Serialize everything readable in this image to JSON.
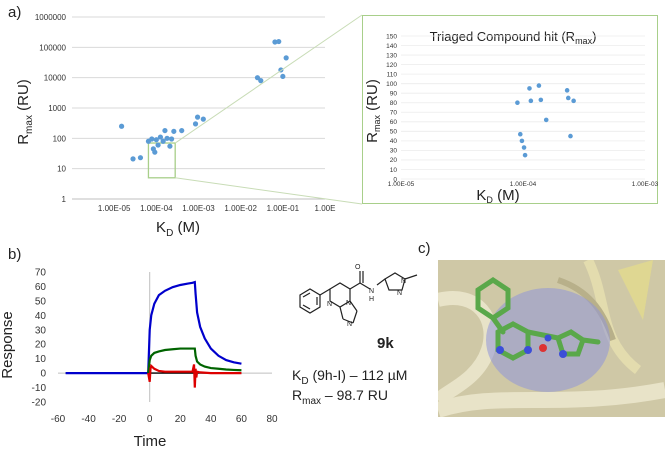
{
  "panel_labels": {
    "a": "a)",
    "b": "b)",
    "c": "c)"
  },
  "compound": {
    "name": "9k",
    "kd_label": "K",
    "kd_sub": "D",
    "kd_text": " (9h-I) – 112 µM",
    "rmax_label": "R",
    "rmax_sub": "max",
    "rmax_text": " – 98.7 RU"
  },
  "colors": {
    "scatter_point": "#5b9bd5",
    "inset_border": "#a8cf8a",
    "zoom_box": "#a8cf8a",
    "trace_blue": "#0000cc",
    "trace_green": "#006400",
    "trace_red": "#dd0000",
    "trace_black": "#000000"
  },
  "chart_data": [
    {
      "type": "scatter",
      "title": "",
      "xlabel": "K",
      "xlabel_sub": "D",
      "xlabel_unit": " (M)",
      "ylabel": "R",
      "ylabel_sub": "max",
      "ylabel_unit": " (RU)",
      "xscale": "log",
      "yscale": "log",
      "xlim": [
        1e-06,
        1
      ],
      "ylim": [
        1,
        1000000
      ],
      "x_tick_labels": [
        "1.00E-05",
        "1.00E-04",
        "1.00E-03",
        "1.00E-02",
        "1.00E-01",
        "1.00E"
      ],
      "x_tick_values": [
        1e-05,
        0.0001,
        0.001,
        0.01,
        0.1,
        1
      ],
      "y_tick_labels": [
        "1",
        "10",
        "100",
        "1000",
        "10000",
        "100000",
        "1000000"
      ],
      "y_tick_values": [
        1,
        10,
        100,
        1000,
        10000,
        100000,
        1000000
      ],
      "grid": true,
      "zoom_box": {
        "x": [
          6.5e-05,
          0.00028
        ],
        "y": [
          5,
          70
        ]
      },
      "points": [
        {
          "x": 1.5e-05,
          "y": 250
        },
        {
          "x": 2.8e-05,
          "y": 21
        },
        {
          "x": 4.2e-05,
          "y": 23
        },
        {
          "x": 6.5e-05,
          "y": 80
        },
        {
          "x": 7.8e-05,
          "y": 95
        },
        {
          "x": 8.5e-05,
          "y": 45
        },
        {
          "x": 9.2e-05,
          "y": 35
        },
        {
          "x": 0.0001,
          "y": 90
        },
        {
          "x": 0.00011,
          "y": 60
        },
        {
          "x": 0.000125,
          "y": 110
        },
        {
          "x": 0.000145,
          "y": 80
        },
        {
          "x": 0.00016,
          "y": 180
        },
        {
          "x": 0.00018,
          "y": 100
        },
        {
          "x": 0.00021,
          "y": 55
        },
        {
          "x": 0.00023,
          "y": 95
        },
        {
          "x": 0.00026,
          "y": 170
        },
        {
          "x": 0.0004,
          "y": 180
        },
        {
          "x": 0.00085,
          "y": 300
        },
        {
          "x": 0.00095,
          "y": 500
        },
        {
          "x": 0.0013,
          "y": 430
        },
        {
          "x": 0.025,
          "y": 10000
        },
        {
          "x": 0.03,
          "y": 8000
        },
        {
          "x": 0.065,
          "y": 150000
        },
        {
          "x": 0.08,
          "y": 155000
        },
        {
          "x": 0.09,
          "y": 18000
        },
        {
          "x": 0.1,
          "y": 11000
        },
        {
          "x": 0.12,
          "y": 45000
        }
      ]
    },
    {
      "type": "scatter",
      "title": "Triaged Compound hit (R",
      "title_sub": "max",
      "title_end": ")",
      "xlabel": "K",
      "xlabel_sub": "D",
      "xlabel_unit": " (M)",
      "ylabel": "R",
      "ylabel_sub": "max",
      "ylabel_unit": " (RU)",
      "xscale": "log",
      "xlim": [
        1e-05,
        0.001
      ],
      "ylim": [
        0,
        150
      ],
      "x_tick_labels": [
        "1.00E-05",
        "1.00E-04",
        "1.00E-03"
      ],
      "x_tick_values": [
        1e-05,
        0.0001,
        0.001
      ],
      "y_tick_labels": [
        "0",
        "10",
        "20",
        "30",
        "40",
        "50",
        "60",
        "70",
        "80",
        "90",
        "100",
        "110",
        "120",
        "130",
        "140",
        "150"
      ],
      "y_tick_values": [
        0,
        10,
        20,
        30,
        40,
        50,
        60,
        70,
        80,
        90,
        100,
        110,
        120,
        130,
        140,
        150
      ],
      "grid": true,
      "points": [
        {
          "x": 9e-05,
          "y": 80
        },
        {
          "x": 9.5e-05,
          "y": 47
        },
        {
          "x": 9.8e-05,
          "y": 40
        },
        {
          "x": 0.000102,
          "y": 33
        },
        {
          "x": 0.000104,
          "y": 25
        },
        {
          "x": 0.000113,
          "y": 95
        },
        {
          "x": 0.000116,
          "y": 82
        },
        {
          "x": 0.000135,
          "y": 98
        },
        {
          "x": 0.00014,
          "y": 83
        },
        {
          "x": 0.000155,
          "y": 62
        },
        {
          "x": 0.00023,
          "y": 93
        },
        {
          "x": 0.000235,
          "y": 85
        },
        {
          "x": 0.000245,
          "y": 45
        },
        {
          "x": 0.00026,
          "y": 82
        }
      ]
    },
    {
      "type": "line",
      "title": "",
      "xlabel": "Time",
      "ylabel": "Response",
      "xlim": [
        -60,
        80
      ],
      "ylim": [
        -20,
        70
      ],
      "x_tick_labels": [
        "-60",
        "-40",
        "-20",
        "0",
        "20",
        "40",
        "60",
        "80"
      ],
      "x_tick_values": [
        -60,
        -40,
        -20,
        0,
        20,
        40,
        60,
        80
      ],
      "y_tick_labels": [
        "-20",
        "-10",
        "0",
        "10",
        "20",
        "30",
        "40",
        "50",
        "60",
        "70"
      ],
      "y_tick_values": [
        -20,
        -10,
        0,
        10,
        20,
        30,
        40,
        50,
        60,
        70
      ],
      "series": [
        {
          "color_key": "trace_black",
          "x": [
            -55,
            0,
            60
          ],
          "y": [
            0,
            0,
            0
          ]
        },
        {
          "color_key": "trace_blue",
          "x": [
            -55,
            -1,
            0,
            1,
            3,
            6,
            10,
            15,
            20,
            25,
            28,
            29.5,
            30,
            31,
            33,
            36,
            40,
            45,
            50,
            55,
            60
          ],
          "y": [
            0,
            0,
            30,
            40,
            48,
            54,
            57,
            59.5,
            61,
            62,
            62.5,
            63,
            55,
            42,
            32,
            24,
            17,
            12,
            9,
            7.5,
            6.5
          ]
        },
        {
          "color_key": "trace_green",
          "x": [
            -1,
            0,
            1,
            3,
            6,
            10,
            15,
            20,
            25,
            29.5,
            30,
            31,
            33,
            36,
            40,
            45,
            50,
            55,
            60
          ],
          "y": [
            0,
            9,
            12,
            14,
            15,
            16,
            16.5,
            17,
            17,
            17,
            12,
            8,
            6,
            4.5,
            3.5,
            3,
            2.5,
            2.2,
            2
          ]
        },
        {
          "color_key": "trace_red",
          "x": [
            -1,
            0,
            0.5,
            1,
            3,
            6,
            10,
            20,
            28,
            29,
            29.5,
            30,
            30.5,
            31,
            33,
            40,
            50,
            60
          ],
          "y": [
            0,
            -6,
            3,
            5,
            3,
            1.5,
            1,
            1,
            1,
            6,
            -10,
            3,
            -3,
            1,
            0.5,
            0,
            0,
            0
          ]
        }
      ]
    }
  ]
}
